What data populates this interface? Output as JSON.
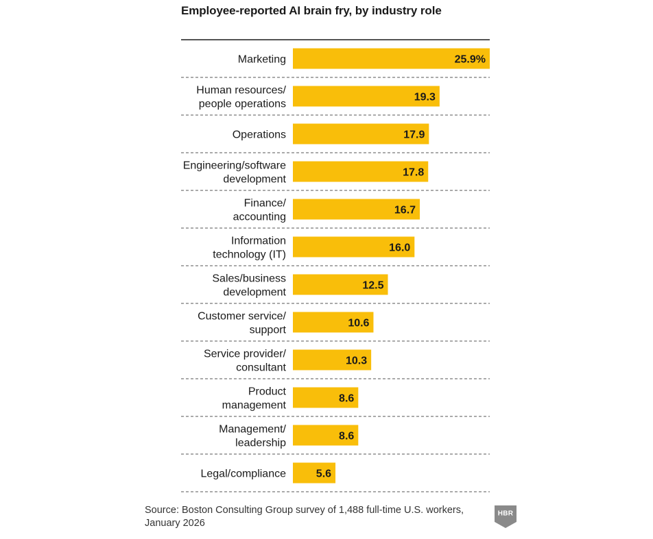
{
  "chart_data": {
    "type": "bar",
    "orientation": "horizontal",
    "title": "Employee-reported AI brain fry, by industry role",
    "categories": [
      [
        "Marketing"
      ],
      [
        "Human resources/",
        "people operations"
      ],
      [
        "Operations"
      ],
      [
        "Engineering/software",
        "development"
      ],
      [
        "Finance/",
        "accounting"
      ],
      [
        "Information",
        "technology (IT)"
      ],
      [
        "Sales/business",
        "development"
      ],
      [
        "Customer service/",
        "support"
      ],
      [
        "Service provider/",
        "consultant"
      ],
      [
        "Product",
        "management"
      ],
      [
        "Management/",
        "leadership"
      ],
      [
        "Legal/compliance"
      ]
    ],
    "values": [
      25.9,
      19.3,
      17.9,
      17.8,
      16.7,
      16.0,
      12.5,
      10.6,
      10.3,
      8.6,
      8.6,
      5.6
    ],
    "value_labels": [
      "25.9%",
      "19.3",
      "17.9",
      "17.8",
      "16.7",
      "16.0",
      "12.5",
      "10.6",
      "10.3",
      "8.6",
      "8.6",
      "5.6"
    ],
    "unit": "%",
    "xlim": [
      0,
      25.9
    ],
    "xlabel": "",
    "ylabel": "",
    "grid": false,
    "bar_color": "#f9be0a",
    "divider_color": "#555555"
  },
  "source": {
    "line1": "Source: Boston Consulting Group survey of 1,488 full-time U.S. workers,",
    "line2": "January 2026"
  },
  "logo": {
    "text": "HBR",
    "color": "#8a8a8a"
  }
}
